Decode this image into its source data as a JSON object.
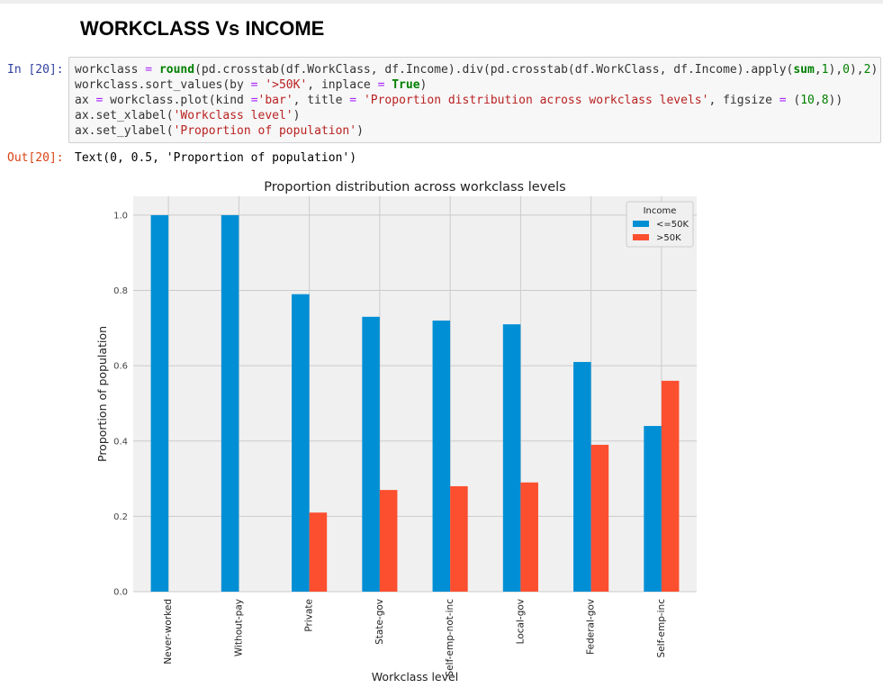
{
  "notebook": {
    "heading": "WORKCLASS Vs INCOME",
    "in_prompt": "In [20]:",
    "out_prompt": "Out[20]:",
    "output_text": "Text(0, 0.5, 'Proportion of population')",
    "code_lines": [
      [
        [
          "",
          "workclass "
        ],
        [
          "op",
          "="
        ],
        [
          "",
          " "
        ],
        [
          "green",
          "round"
        ],
        [
          "",
          "(pd.crosstab(df.WorkClass, df.Income).div(pd.crosstab(df.WorkClass, df.Income).apply("
        ],
        [
          "green",
          "sum"
        ],
        [
          "",
          ","
        ],
        [
          "num",
          "1"
        ],
        [
          "",
          "),"
        ],
        [
          "num",
          "0"
        ],
        [
          "",
          "),"
        ],
        [
          "num",
          "2"
        ],
        [
          "",
          ")"
        ]
      ],
      [
        [
          "",
          "workclass.sort_values(by "
        ],
        [
          "op",
          "="
        ],
        [
          "",
          " "
        ],
        [
          "str",
          "'>50K'"
        ],
        [
          "",
          ", inplace "
        ],
        [
          "op",
          "="
        ],
        [
          "",
          " "
        ],
        [
          "green",
          "True"
        ],
        [
          "",
          ")"
        ]
      ],
      [
        [
          "",
          "ax "
        ],
        [
          "op",
          "="
        ],
        [
          "",
          " workclass.plot(kind "
        ],
        [
          "op",
          "="
        ],
        [
          "str",
          "'bar'"
        ],
        [
          "",
          ", title "
        ],
        [
          "op",
          "="
        ],
        [
          "",
          " "
        ],
        [
          "str",
          "'Proportion distribution across workclass levels'"
        ],
        [
          "",
          ", figsize "
        ],
        [
          "op",
          "="
        ],
        [
          "",
          " ("
        ],
        [
          "num",
          "10"
        ],
        [
          "",
          ","
        ],
        [
          "num",
          "8"
        ],
        [
          "",
          "))"
        ]
      ],
      [
        [
          "",
          "ax.set_xlabel("
        ],
        [
          "str",
          "'Workclass level'"
        ],
        [
          "",
          ")"
        ]
      ],
      [
        [
          "",
          "ax.set_ylabel("
        ],
        [
          "str",
          "'Proportion of population'"
        ],
        [
          "",
          ")"
        ]
      ]
    ]
  },
  "chart_data": {
    "type": "bar",
    "title": "Proportion distribution across workclass levels",
    "xlabel": "Workclass level",
    "ylabel": "Proportion of population",
    "categories": [
      "Never-worked",
      "Without-pay",
      "Private",
      "State-gov",
      "Self-emp-not-inc",
      "Local-gov",
      "Federal-gov",
      "Self-emp-inc"
    ],
    "series": [
      {
        "name": "<=50K",
        "color": "#008fd5",
        "values": [
          1.0,
          1.0,
          0.79,
          0.73,
          0.72,
          0.71,
          0.61,
          0.44
        ]
      },
      {
        "name": ">50K",
        "color": "#fc4f30",
        "values": [
          0.0,
          0.0,
          0.21,
          0.27,
          0.28,
          0.29,
          0.39,
          0.56
        ]
      }
    ],
    "ylim": [
      0,
      1.05
    ],
    "yticks": [
      "0.0",
      "0.2",
      "0.4",
      "0.6",
      "0.8",
      "1.0"
    ],
    "legend_title": "Income",
    "legend_position": "top-right",
    "grid": true,
    "style": "fivethirtyeight"
  }
}
